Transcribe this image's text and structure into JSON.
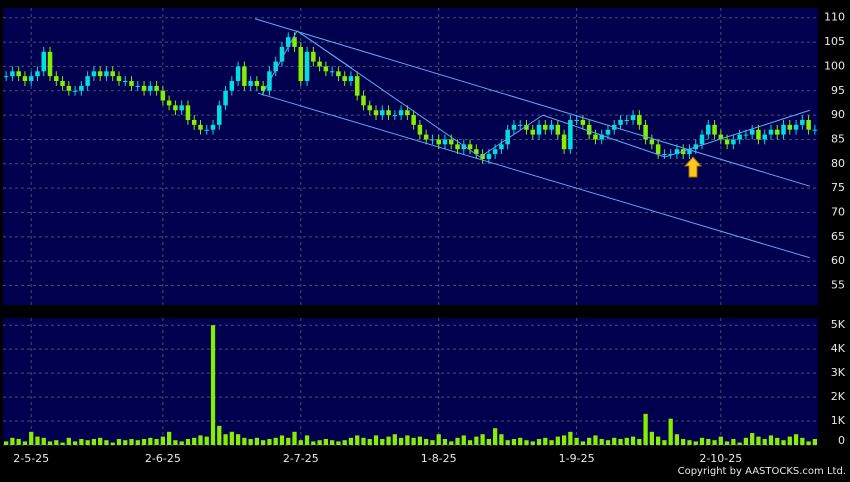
{
  "chart_data": {
    "type": "candlestick",
    "categories": [
      null,
      null,
      null,
      null,
      "2-5-25",
      null,
      null,
      null,
      null,
      null,
      null,
      null,
      null,
      null,
      null,
      null,
      null,
      null,
      null,
      null,
      null,
      null,
      null,
      null,
      null,
      "2-6-25",
      null,
      null,
      null,
      null,
      null,
      null,
      null,
      null,
      null,
      null,
      null,
      null,
      null,
      null,
      null,
      null,
      null,
      null,
      null,
      null,
      null,
      "2-7-25",
      null,
      null,
      null,
      null,
      null,
      null,
      null,
      null,
      null,
      null,
      null,
      null,
      null,
      null,
      null,
      null,
      null,
      null,
      null,
      null,
      null,
      "1-8-25",
      null,
      null,
      null,
      null,
      null,
      null,
      null,
      null,
      null,
      null,
      null,
      null,
      null,
      null,
      null,
      null,
      null,
      null,
      null,
      null,
      null,
      "1-9-25",
      null,
      null,
      null,
      null,
      null,
      null,
      null,
      null,
      null,
      null,
      null,
      null,
      null,
      null,
      null,
      null,
      null,
      null,
      null,
      null,
      null,
      null,
      "2-10-25",
      null,
      null,
      null,
      null,
      null,
      null,
      null,
      null,
      null,
      null,
      null,
      null,
      null,
      null,
      null
    ],
    "open": [
      98,
      98,
      99,
      98,
      97,
      98,
      99,
      103,
      98,
      97,
      96,
      95,
      95,
      96,
      98,
      99,
      98,
      99,
      98,
      97,
      97,
      96,
      96,
      95,
      96,
      95,
      93,
      92,
      91,
      92,
      89,
      88,
      87,
      87,
      88,
      92,
      95,
      97,
      100,
      96,
      97,
      96,
      95,
      99,
      101,
      104,
      106,
      104,
      97,
      103,
      101,
      100,
      99,
      99,
      98,
      97,
      98,
      94,
      92,
      91,
      90,
      91,
      90,
      90,
      91,
      90,
      88,
      86,
      85,
      85,
      84,
      85,
      84,
      83,
      84,
      83,
      82,
      81,
      82,
      83,
      84,
      87,
      88,
      88,
      87,
      86,
      88,
      87,
      88,
      86,
      83,
      89,
      89,
      88,
      86,
      85,
      86,
      87,
      88,
      89,
      89,
      90,
      88,
      85,
      84,
      82,
      82,
      82,
      83,
      82,
      83,
      84,
      86,
      88,
      86,
      85,
      84,
      85,
      86,
      86,
      87,
      85,
      86,
      87,
      86,
      88,
      87,
      88,
      89,
      87
    ],
    "high": [
      99,
      100,
      100,
      99,
      99,
      100,
      104,
      104,
      99,
      98,
      97,
      96,
      97,
      99,
      100,
      100,
      100,
      100,
      99,
      98,
      98,
      97,
      97,
      97,
      97,
      96,
      94,
      93,
      93,
      93,
      90,
      89,
      88,
      89,
      93,
      96,
      98,
      101,
      101,
      98,
      98,
      97,
      100,
      102,
      105,
      107,
      107,
      105,
      104,
      104,
      102,
      101,
      100,
      100,
      99,
      99,
      99,
      95,
      93,
      92,
      92,
      92,
      91,
      92,
      92,
      91,
      89,
      87,
      86,
      86,
      86,
      86,
      85,
      85,
      85,
      84,
      83,
      83,
      84,
      85,
      88,
      89,
      89,
      89,
      88,
      89,
      89,
      89,
      89,
      87,
      90,
      90,
      90,
      89,
      87,
      87,
      88,
      89,
      90,
      90,
      91,
      91,
      89,
      86,
      85,
      83,
      83,
      84,
      84,
      84,
      85,
      87,
      89,
      89,
      87,
      86,
      86,
      87,
      87,
      88,
      88,
      87,
      88,
      88,
      89,
      89,
      89,
      90,
      90,
      88
    ],
    "low": [
      97,
      97,
      97,
      96,
      96,
      97,
      98,
      97,
      96,
      95,
      94,
      94,
      94,
      95,
      97,
      97,
      97,
      97,
      96,
      96,
      95,
      95,
      94,
      94,
      94,
      92,
      91,
      90,
      90,
      88,
      87,
      86,
      86,
      86,
      87,
      91,
      94,
      96,
      95,
      95,
      95,
      94,
      94,
      98,
      100,
      103,
      103,
      96,
      96,
      100,
      99,
      98,
      98,
      97,
      96,
      96,
      93,
      91,
      90,
      89,
      89,
      89,
      89,
      89,
      89,
      87,
      85,
      84,
      84,
      83,
      83,
      83,
      82,
      82,
      82,
      81,
      80,
      80,
      81,
      82,
      83,
      86,
      87,
      86,
      85,
      85,
      86,
      86,
      85,
      82,
      82,
      88,
      87,
      85,
      84,
      84,
      85,
      86,
      87,
      88,
      88,
      87,
      84,
      83,
      81,
      81,
      81,
      81,
      81,
      81,
      82,
      83,
      85,
      85,
      84,
      83,
      83,
      84,
      85,
      85,
      84,
      84,
      85,
      85,
      85,
      86,
      86,
      87,
      86,
      86
    ],
    "close": [
      98,
      99,
      98,
      97,
      98,
      99,
      103,
      98,
      97,
      96,
      95,
      95,
      96,
      98,
      99,
      98,
      99,
      98,
      97,
      97,
      96,
      96,
      95,
      96,
      95,
      93,
      92,
      91,
      92,
      89,
      88,
      87,
      87,
      88,
      92,
      95,
      97,
      100,
      96,
      97,
      96,
      95,
      99,
      101,
      104,
      106,
      104,
      97,
      103,
      101,
      100,
      99,
      99,
      98,
      97,
      98,
      94,
      92,
      91,
      90,
      91,
      90,
      90,
      91,
      90,
      88,
      86,
      85,
      85,
      84,
      85,
      84,
      83,
      84,
      83,
      82,
      81,
      82,
      83,
      84,
      87,
      88,
      88,
      87,
      86,
      88,
      87,
      88,
      86,
      83,
      89,
      89,
      88,
      86,
      85,
      86,
      87,
      88,
      89,
      89,
      90,
      88,
      85,
      84,
      82,
      82,
      82,
      83,
      82,
      83,
      84,
      86,
      88,
      86,
      85,
      84,
      85,
      86,
      86,
      87,
      85,
      86,
      87,
      86,
      88,
      87,
      88,
      89,
      87,
      87
    ],
    "volume": [
      150,
      300,
      250,
      150,
      550,
      350,
      300,
      150,
      200,
      100,
      300,
      150,
      250,
      200,
      250,
      300,
      200,
      100,
      250,
      200,
      250,
      200,
      250,
      300,
      250,
      350,
      550,
      200,
      150,
      250,
      300,
      400,
      350,
      5000,
      800,
      450,
      550,
      450,
      300,
      250,
      300,
      200,
      250,
      300,
      400,
      300,
      550,
      200,
      400,
      150,
      200,
      250,
      200,
      150,
      200,
      300,
      400,
      300,
      250,
      400,
      250,
      350,
      450,
      300,
      400,
      300,
      350,
      250,
      200,
      450,
      250,
      150,
      300,
      400,
      200,
      350,
      450,
      250,
      700,
      450,
      200,
      250,
      300,
      200,
      150,
      250,
      300,
      200,
      350,
      400,
      550,
      300,
      150,
      300,
      400,
      250,
      200,
      300,
      250,
      300,
      350,
      250,
      1300,
      550,
      350,
      200,
      1100,
      450,
      250,
      200,
      150,
      300,
      250,
      200,
      350,
      150,
      250,
      100,
      300,
      500,
      350,
      250,
      400,
      300,
      200,
      350,
      450,
      300,
      150,
      250
    ],
    "up_color": "#00dede",
    "down_color": "#84f000",
    "volume_color": "#84f000",
    "trendline_color": "#5aaaf0",
    "grid": true,
    "ylim": [
      51,
      112
    ],
    "yticks": [
      55,
      60,
      65,
      70,
      75,
      80,
      85,
      90,
      95,
      100,
      105,
      110
    ],
    "volume_ylim": [
      0,
      5300
    ],
    "volume_yticks": [
      0,
      {
        "value": 1000,
        "label": "1K"
      },
      {
        "value": 2000,
        "label": "2K"
      },
      {
        "value": 3000,
        "label": "3K"
      },
      {
        "value": 4000,
        "label": "4K"
      },
      {
        "value": 5000,
        "label": "5K"
      }
    ],
    "trendlines": [
      {
        "x": [
          39.7,
          128.2
        ],
        "y": [
          109.8,
          75.4
        ]
      },
      {
        "x": [
          40.2,
          128.2
        ],
        "y": [
          94.5,
          60.7
        ]
      },
      {
        "x": [
          40.8,
          46.4
        ],
        "y": [
          94.1,
          107.3
        ]
      },
      {
        "x": [
          46.4,
          75.6
        ],
        "y": [
          107.3,
          81.4
        ]
      },
      {
        "x": [
          46.4,
          55.2
        ],
        "y": [
          107.3,
          99.6
        ]
      },
      {
        "x": [
          75.6,
          85.6
        ],
        "y": [
          81.4,
          90.0
        ]
      },
      {
        "x": [
          85.6,
          105.1
        ],
        "y": [
          90.0,
          81.4
        ]
      },
      {
        "x": [
          105.1,
          128.2
        ],
        "y": [
          81.4,
          91.0
        ]
      }
    ],
    "copyright": "Copyright by AASTOCKS.com Ltd."
  }
}
